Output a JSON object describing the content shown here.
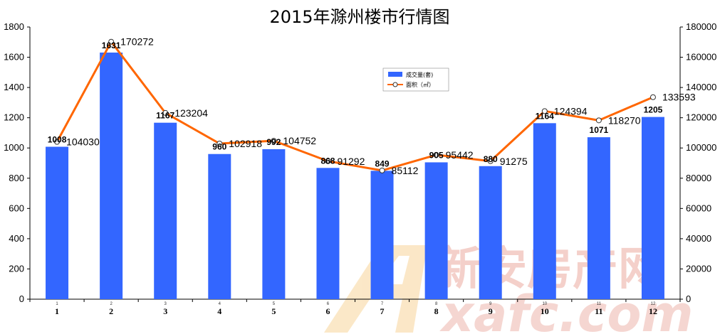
{
  "chart_data": {
    "type": "bar",
    "title": "2015年滁州楼市行情图",
    "categories": [
      "1",
      "2",
      "3",
      "4",
      "5",
      "6",
      "7",
      "8",
      "9",
      "10",
      "11",
      "12"
    ],
    "series": [
      {
        "name": "成交量(套)",
        "type": "bar",
        "axis": "left",
        "values": [
          1008,
          1631,
          1167,
          960,
          992,
          868,
          849,
          905,
          880,
          1164,
          1071,
          1205
        ]
      },
      {
        "name": "面积（㎡）",
        "type": "line",
        "axis": "right",
        "values": [
          104030,
          170272,
          123204,
          102918,
          104752,
          91292,
          85112,
          95442,
          91275,
          124394,
          118270,
          133593
        ]
      }
    ],
    "y_left": {
      "ylim": [
        0,
        1800
      ],
      "ticks": [
        "0",
        "200",
        "400",
        "600",
        "800",
        "1000",
        "1200",
        "1400",
        "1600",
        "1800"
      ]
    },
    "y_right": {
      "ylim": [
        0,
        180000
      ],
      "ticks": [
        "0",
        "20000",
        "40000",
        "60000",
        "80000",
        "100000",
        "120000",
        "140000",
        "160000",
        "180000"
      ]
    },
    "legend_placement": "top-center",
    "grid": false,
    "colors": {
      "bar": "#3366ff",
      "line": "#ff6600"
    }
  },
  "watermark": {
    "chinese": "新安房产网",
    "english": "xafc.com"
  }
}
